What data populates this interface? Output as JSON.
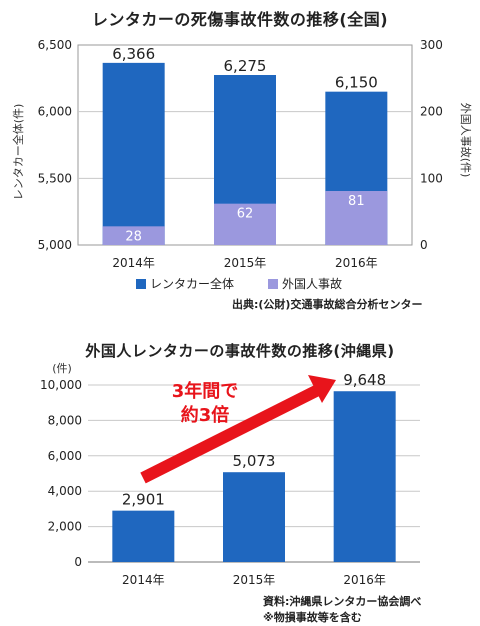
{
  "chart_data": [
    {
      "type": "bar",
      "title": "レンタカーの死傷事故件数の推移(全国)",
      "categories": [
        "2014年",
        "2015年",
        "2016年"
      ],
      "series": [
        {
          "name": "レンタカー全体",
          "axis": "left",
          "color": "#1f67bf",
          "values": [
            6366,
            6275,
            6150
          ],
          "labels": [
            "6,366",
            "6,275",
            "6,150"
          ]
        },
        {
          "name": "外国人事故",
          "axis": "right",
          "color": "#9b98de",
          "values": [
            28,
            62,
            81
          ],
          "labels": [
            "28",
            "62",
            "81"
          ]
        }
      ],
      "ylabel": "レンタカー全体(件)",
      "ylabel_right": "外国人事故(件)",
      "ylim": [
        5000,
        6500
      ],
      "ylim_right": [
        0,
        300
      ],
      "yticks": [
        "5,000",
        "5,500",
        "6,000",
        "6,500"
      ],
      "yticks_right": [
        "0",
        "100",
        "200",
        "300"
      ],
      "legend_position": "bottom",
      "source": "出典:(公財)交通事故総合分析センター"
    },
    {
      "type": "bar",
      "title": "外国人レンタカーの事故件数の推移(沖縄県)",
      "categories": [
        "2014年",
        "2015年",
        "2016年"
      ],
      "values": [
        2901,
        5073,
        9648
      ],
      "labels": [
        "2,901",
        "5,073",
        "9,648"
      ],
      "color": "#1f67bf",
      "ylabel": "(件)",
      "ylim": [
        0,
        10000
      ],
      "yticks": [
        "0",
        "2,000",
        "4,000",
        "6,000",
        "8,000",
        "10,000"
      ],
      "annotation_line1": "3年間で",
      "annotation_line2": "約3倍",
      "annotation_color": "#e8141b",
      "source_line1": "資料:沖縄県レンタカー協会調べ",
      "source_line2": "※物損事故等を含む"
    }
  ]
}
